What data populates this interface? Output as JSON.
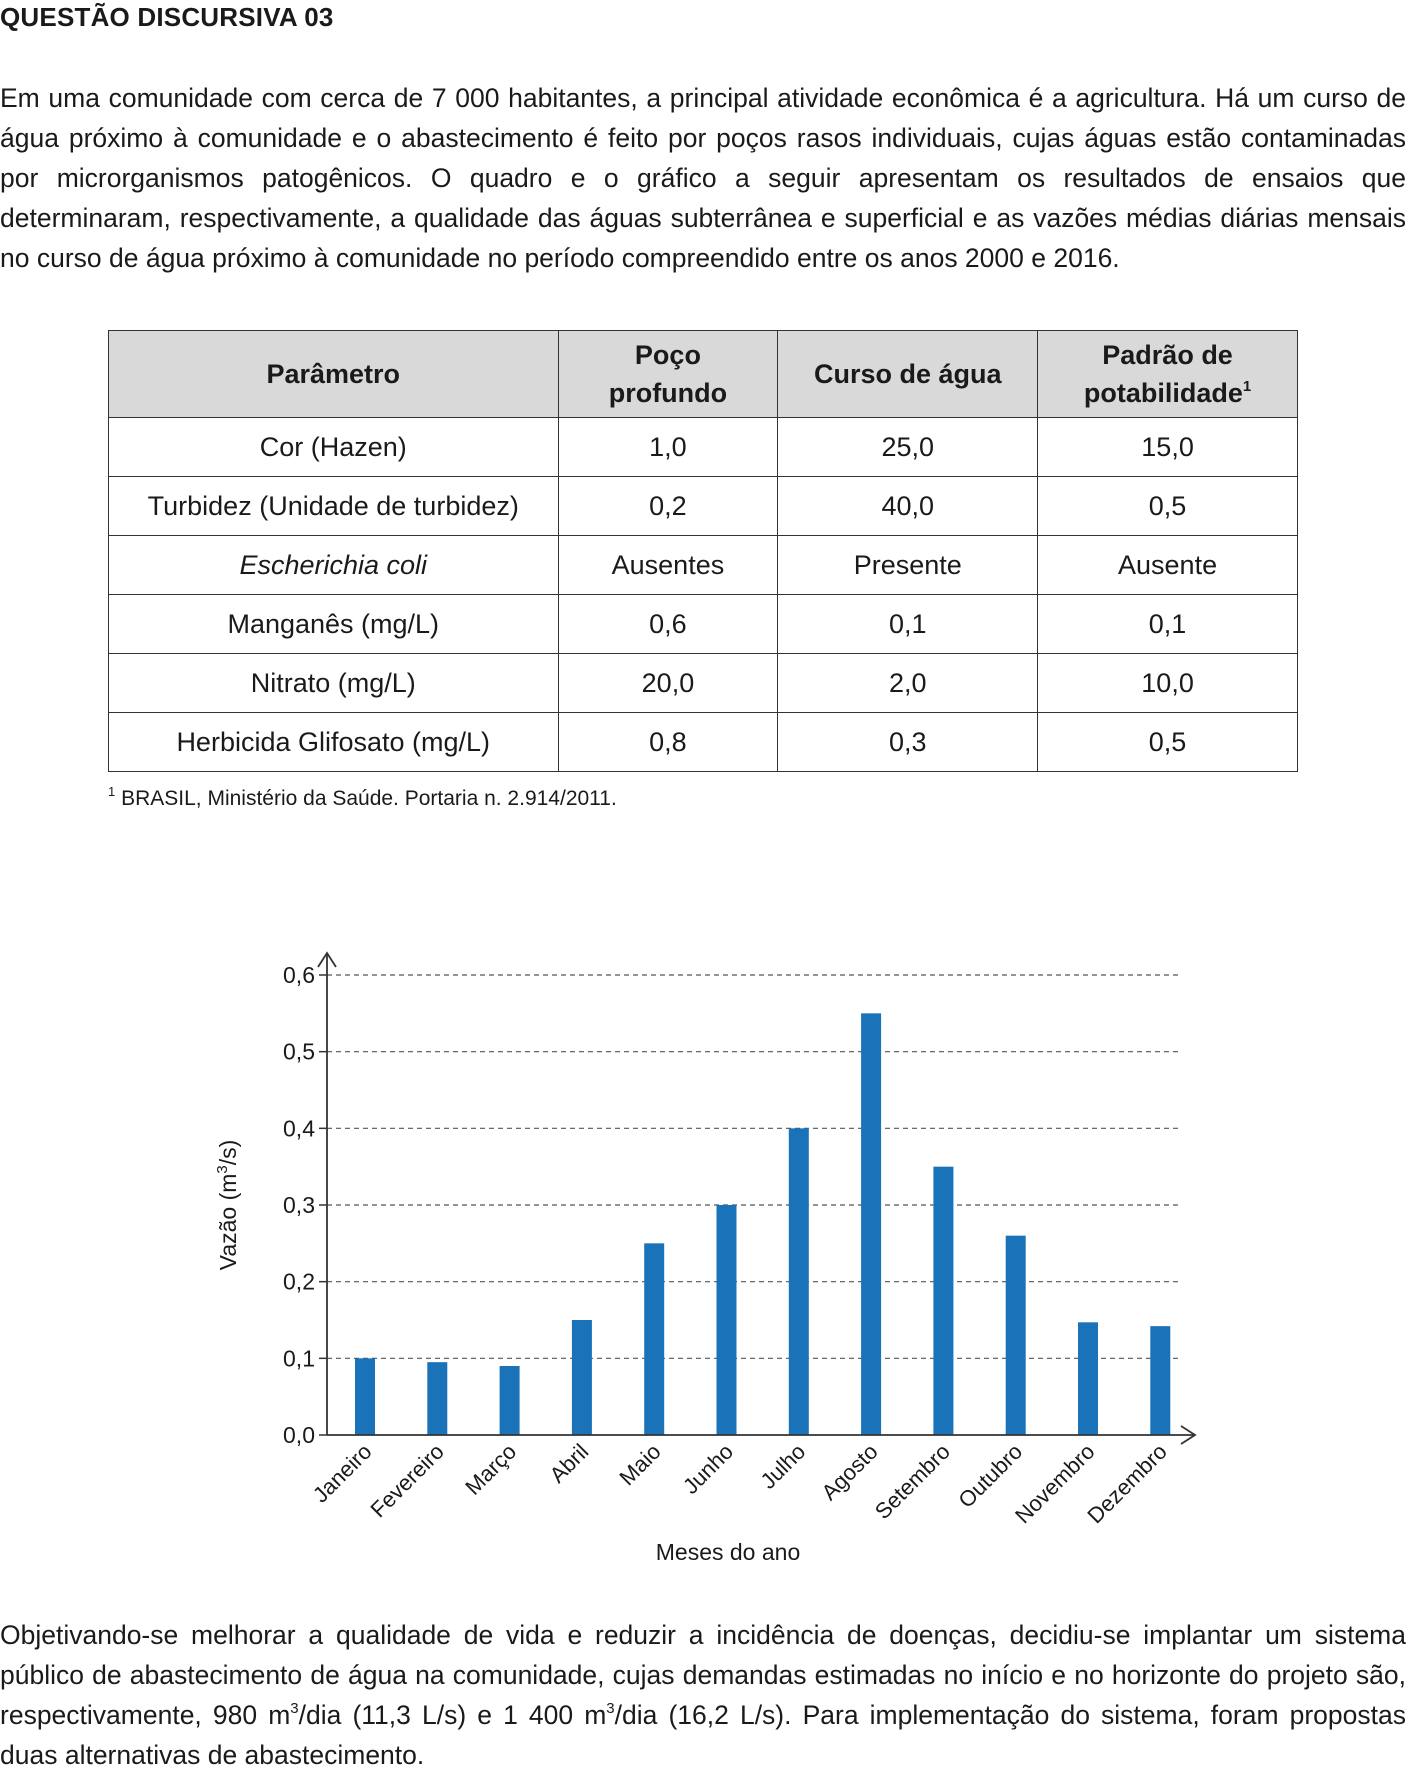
{
  "title": "QUESTÃO DISCURSIVA 03",
  "intro": {
    "text": "Em uma comunidade com cerca de 7 000 habitantes, a principal atividade econômica é a agricultura. Há um curso de água próximo à comunidade e o abastecimento é feito por poços rasos individuais, cujas águas estão contaminadas por microrganismos patogênicos. O quadro e o gráfico a seguir apresentam os resultados de ensaios que determinaram, respectivamente, a qualidade das águas subterrânea e superficial e as vazões médias diárias mensais no curso de água próximo à comunidade no período compreendido entre os anos 2000 e 2016."
  },
  "table": {
    "headers": {
      "parametro": "Parâmetro",
      "poco_1": "Poço",
      "poco_2": "profundo",
      "curso": "Curso de água",
      "padrao_1": "Padrão de",
      "padrao_2": "potabilidade",
      "padrao_sup": "1"
    },
    "rows": [
      [
        "Cor (Hazen)",
        "1,0",
        "25,0",
        "15,0"
      ],
      [
        "Turbidez (Unidade de turbidez)",
        "0,2",
        "40,0",
        "0,5"
      ],
      [
        "Escherichia coli",
        "Ausentes",
        "Presente",
        "Ausente"
      ],
      [
        "Manganês (mg/L)",
        "0,6",
        "0,1",
        "0,1"
      ],
      [
        "Nitrato (mg/L)",
        "20,0",
        "2,0",
        "10,0"
      ],
      [
        "Herbicida Glifosato (mg/L)",
        "0,8",
        "0,3",
        "0,5"
      ]
    ],
    "footnote_mark": "1",
    "footnote": "BRASIL, Ministério da Saúde. Portaria n. 2.914/2011."
  },
  "chart_data": {
    "type": "bar",
    "categories": [
      "Janeiro",
      "Fevereiro",
      "Março",
      "Abril",
      "Maio",
      "Junho",
      "Julho",
      "Agosto",
      "Setembro",
      "Outubro",
      "Novembro",
      "Dezembro"
    ],
    "values": [
      0.1,
      0.095,
      0.09,
      0.15,
      0.25,
      0.3,
      0.4,
      0.55,
      0.35,
      0.26,
      0.147,
      0.142
    ],
    "yticks": [
      "0,0",
      "0,1",
      "0,2",
      "0,3",
      "0,4",
      "0,5",
      "0,6"
    ],
    "ytick_values": [
      0,
      0.1,
      0.2,
      0.3,
      0.4,
      0.5,
      0.6
    ],
    "ylim": [
      0,
      0.6
    ],
    "ylabel_main": "Vazão (m",
    "ylabel_sup": "3",
    "ylabel_end": "/s)",
    "xlabel": "Meses do ano",
    "grid": "dashed horizontal",
    "bar_color": "#1a73b8"
  },
  "closing": {
    "part1": "Objetivando-se melhorar a qualidade de vida e reduzir a incidência de doenças, decidiu-se implantar um sistema público de abastecimento de água na comunidade, cujas demandas estimadas no início e no horizonte do projeto são, respectivamente, 980 m",
    "sup1": "3",
    "part2": "/dia (11,3 L/s) e 1 400 m",
    "sup2": "3",
    "part3": "/dia (16,2 L/s). Para implementação do sistema, foram propostas duas alternativas de abastecimento."
  }
}
